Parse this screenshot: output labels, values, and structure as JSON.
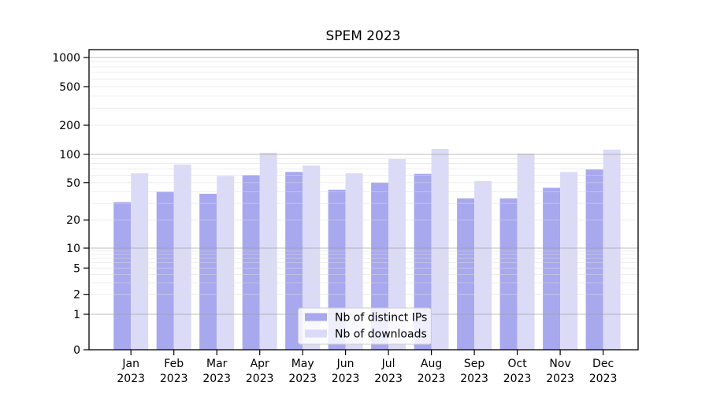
{
  "chart_data": {
    "type": "bar",
    "title": "SPEM 2023",
    "categories": [
      "Jan",
      "Feb",
      "Mar",
      "Apr",
      "May",
      "Jun",
      "Jul",
      "Aug",
      "Sep",
      "Oct",
      "Nov",
      "Dec"
    ],
    "category_year": "2023",
    "series": [
      {
        "name": "Nb of distinct IPs",
        "color": "#a8a8ef",
        "values": [
          31,
          40,
          38,
          60,
          65,
          42,
          50,
          62,
          34,
          34,
          44,
          69
        ]
      },
      {
        "name": "Nb of downloads",
        "color": "#dbdbf8",
        "values": [
          63,
          78,
          59,
          104,
          76,
          63,
          89,
          114,
          52,
          102,
          65,
          112
        ]
      }
    ],
    "y_axis": {
      "scale": "symlog",
      "ticks": [
        0,
        1,
        2,
        5,
        10,
        20,
        50,
        100,
        200,
        500,
        1000
      ],
      "range": [
        0,
        1000
      ]
    },
    "xlabel": "",
    "ylabel": "",
    "grid": "horizontal",
    "legend": {
      "position": "bottom-center",
      "entries": [
        "Nb of distinct IPs",
        "Nb of downloads"
      ]
    }
  }
}
